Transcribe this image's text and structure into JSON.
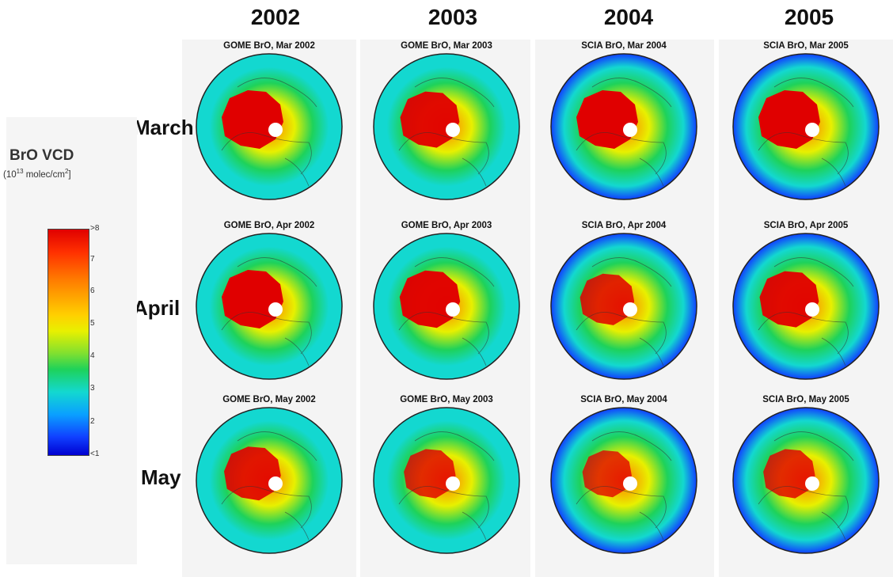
{
  "years": [
    "2002",
    "2003",
    "2004",
    "2005"
  ],
  "months": [
    "March",
    "April",
    "May"
  ],
  "panel_titles": [
    [
      "GOME BrO, Mar 2002",
      "GOME BrO, Mar 2003",
      "SCIA BrO, Mar 2004",
      "SCIA BrO, Mar 2005"
    ],
    [
      "GOME BrO, Apr 2002",
      "GOME BrO, Apr 2003",
      "SCIA BrO, Apr 2004",
      "SCIA BrO, Apr 2005"
    ],
    [
      "GOME BrO, May 2002",
      "GOME BrO, May 2003",
      "SCIA BrO, May 2004",
      "SCIA BrO, May 2005"
    ]
  ],
  "legend": {
    "title": "BrO VCD",
    "unit_prefix": "(10",
    "unit_exp": "13",
    "unit_mid": " molec/cm",
    "unit_exp2": "2",
    "unit_suffix": "]",
    "ticks": [
      ">8",
      "7",
      "6",
      "5",
      "4",
      "3",
      "2",
      "<1"
    ]
  },
  "colors": {
    "high": "#e00000",
    "orange": "#ff7a00",
    "yellow": "#e8f000",
    "green": "#1ed25a",
    "cyan": "#13d8d0",
    "blue": "#1040ff",
    "low": "#0000d0"
  },
  "intensity": [
    [
      1.0,
      0.9,
      1.0,
      1.0
    ],
    [
      1.0,
      0.95,
      0.7,
      0.9
    ],
    [
      0.8,
      0.6,
      0.5,
      0.6
    ]
  ]
}
